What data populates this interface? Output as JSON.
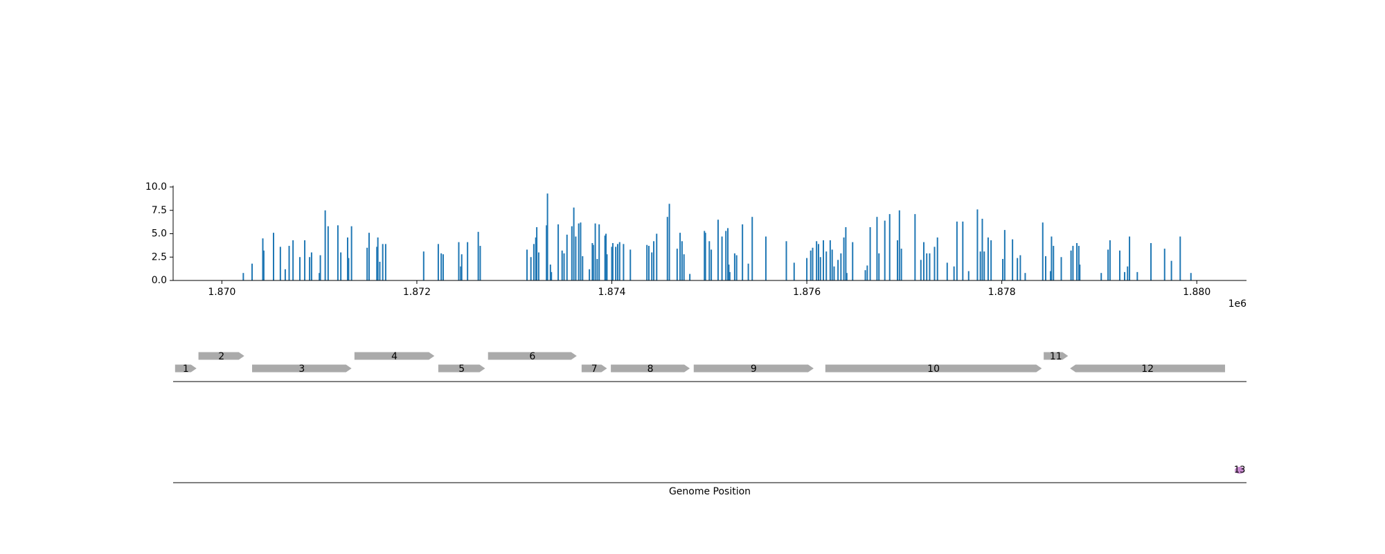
{
  "chart_data": [
    {
      "type": "bar",
      "x": [
        1870220,
        1870310,
        1870420,
        1870430,
        1870530,
        1870600,
        1870650,
        1870690,
        1870730,
        1870800,
        1870850,
        1870900,
        1870920,
        1871000,
        1871010,
        1871060,
        1871090,
        1871190,
        1871220,
        1871290,
        1871300,
        1871330,
        1871490,
        1871510,
        1871590,
        1871600,
        1871620,
        1871650,
        1871680,
        1872070,
        1872220,
        1872250,
        1872270,
        1872430,
        1872450,
        1872460,
        1872520,
        1872630,
        1872650,
        1873130,
        1873170,
        1873200,
        1873220,
        1873230,
        1873250,
        1873330,
        1873340,
        1873370,
        1873380,
        1873450,
        1873490,
        1873510,
        1873540,
        1873590,
        1873610,
        1873630,
        1873660,
        1873680,
        1873700,
        1873770,
        1873800,
        1873810,
        1873830,
        1873850,
        1873870,
        1873930,
        1873940,
        1873950,
        1874000,
        1874010,
        1874040,
        1874060,
        1874080,
        1874120,
        1874190,
        1874360,
        1874380,
        1874410,
        1874430,
        1874460,
        1874570,
        1874590,
        1874670,
        1874700,
        1874720,
        1874740,
        1874800,
        1874950,
        1874960,
        1875000,
        1875020,
        1875090,
        1875130,
        1875170,
        1875190,
        1875200,
        1875210,
        1875260,
        1875280,
        1875340,
        1875400,
        1875440,
        1875580,
        1875790,
        1875870,
        1876000,
        1876040,
        1876060,
        1876100,
        1876120,
        1876140,
        1876170,
        1876200,
        1876240,
        1876260,
        1876280,
        1876320,
        1876350,
        1876380,
        1876400,
        1876410,
        1876470,
        1876600,
        1876620,
        1876650,
        1876720,
        1876740,
        1876800,
        1876850,
        1876930,
        1876950,
        1876970,
        1877110,
        1877170,
        1877200,
        1877230,
        1877260,
        1877310,
        1877340,
        1877440,
        1877510,
        1877540,
        1877600,
        1877660,
        1877750,
        1877780,
        1877800,
        1877820,
        1877860,
        1877890,
        1878010,
        1878030,
        1878110,
        1878160,
        1878190,
        1878240,
        1878420,
        1878450,
        1878500,
        1878510,
        1878530,
        1878610,
        1878710,
        1878730,
        1878770,
        1878790,
        1878800,
        1879020,
        1879090,
        1879110,
        1879210,
        1879260,
        1879290,
        1879310,
        1879390,
        1879530,
        1879670,
        1879740,
        1879830,
        1879940
      ],
      "values": [
        0.8,
        1.8,
        4.5,
        3.2,
        5.1,
        3.6,
        1.2,
        3.7,
        4.3,
        2.5,
        4.3,
        2.5,
        3.0,
        0.8,
        2.7,
        7.5,
        5.8,
        5.9,
        3.0,
        4.6,
        2.4,
        5.8,
        3.5,
        5.1,
        3.6,
        4.6,
        2.0,
        3.9,
        3.9,
        3.1,
        3.9,
        2.9,
        2.8,
        4.1,
        1.5,
        2.8,
        4.1,
        5.2,
        3.7,
        3.3,
        2.5,
        3.9,
        4.6,
        5.7,
        3.0,
        5.9,
        9.3,
        1.7,
        0.9,
        6.0,
        3.2,
        2.9,
        4.9,
        5.8,
        7.8,
        4.7,
        6.1,
        6.2,
        2.6,
        1.2,
        4.0,
        3.8,
        6.1,
        2.3,
        6.0,
        4.8,
        5.0,
        2.8,
        3.6,
        4.0,
        3.6,
        3.9,
        4.1,
        3.9,
        3.3,
        3.8,
        3.7,
        3.0,
        4.2,
        5.0,
        6.8,
        8.2,
        3.4,
        5.1,
        4.2,
        2.8,
        0.7,
        5.3,
        5.1,
        4.2,
        3.3,
        6.5,
        4.7,
        5.3,
        5.6,
        1.7,
        0.9,
        2.9,
        2.7,
        6.0,
        1.8,
        6.8,
        4.7,
        4.2,
        1.9,
        2.4,
        3.2,
        3.5,
        4.2,
        3.9,
        2.5,
        4.3,
        3.1,
        4.3,
        3.3,
        1.5,
        2.2,
        2.9,
        4.6,
        5.7,
        0.8,
        4.1,
        1.1,
        1.6,
        5.7,
        6.8,
        2.9,
        6.4,
        7.1,
        4.3,
        7.5,
        3.4,
        7.1,
        2.2,
        4.1,
        2.9,
        2.9,
        3.6,
        4.6,
        1.9,
        1.5,
        6.3,
        6.3,
        1.0,
        7.6,
        3.1,
        6.6,
        3.1,
        4.6,
        4.3,
        2.3,
        5.4,
        4.4,
        2.4,
        2.7,
        0.8,
        6.2,
        2.6,
        1.0,
        4.7,
        3.7,
        2.5,
        3.2,
        3.7,
        4.0,
        3.7,
        1.7,
        0.8,
        3.3,
        4.3,
        3.2,
        0.9,
        1.5,
        4.7,
        0.9,
        4.0,
        3.4,
        2.1,
        4.7,
        0.8
      ],
      "color": "#1f77b4",
      "xlim": [
        1869500,
        1880510
      ],
      "xticks": [
        {
          "value": 1870000,
          "label": "1.870"
        },
        {
          "value": 1872000,
          "label": "1.872"
        },
        {
          "value": 1874000,
          "label": "1.874"
        },
        {
          "value": 1876000,
          "label": "1.876"
        },
        {
          "value": 1878000,
          "label": "1.878"
        },
        {
          "value": 1880000,
          "label": "1.880"
        }
      ],
      "x_offset_label": "1e6",
      "ylim": [
        0,
        10
      ],
      "yticks": [
        {
          "value": 0,
          "label": "0.0"
        },
        2.5,
        {
          "value": 5,
          "label": "5.0"
        },
        7.5,
        {
          "value": 10,
          "label": "10.0"
        }
      ]
    },
    {
      "type": "gene_track",
      "xlabel": "Genome Position",
      "xlim": [
        1869500,
        1880510
      ],
      "color": "#aaaaaa",
      "genes": [
        {
          "label": "1",
          "start": 1869520,
          "end": 1869740,
          "strand": 1
        },
        {
          "label": "2",
          "start": 1869760,
          "end": 1870230,
          "strand": 1
        },
        {
          "label": "3",
          "start": 1870310,
          "end": 1871330,
          "strand": 1
        },
        {
          "label": "4",
          "start": 1871360,
          "end": 1872180,
          "strand": 1
        },
        {
          "label": "5",
          "start": 1872220,
          "end": 1872700,
          "strand": 1
        },
        {
          "label": "6",
          "start": 1872730,
          "end": 1873640,
          "strand": 1
        },
        {
          "label": "7",
          "start": 1873690,
          "end": 1873950,
          "strand": 1
        },
        {
          "label": "8",
          "start": 1873990,
          "end": 1874800,
          "strand": 1
        },
        {
          "label": "9",
          "start": 1874840,
          "end": 1876070,
          "strand": 1
        },
        {
          "label": "10",
          "start": 1876190,
          "end": 1878410,
          "strand": 1
        },
        {
          "label": "11",
          "start": 1878430,
          "end": 1878680,
          "strand": 1
        },
        {
          "label": "12",
          "start": 1878700,
          "end": 1880290,
          "strand": -1
        }
      ],
      "features": [
        {
          "label": "13",
          "start": 1880390,
          "end": 1880490,
          "color": "#b86cc0"
        }
      ]
    }
  ]
}
